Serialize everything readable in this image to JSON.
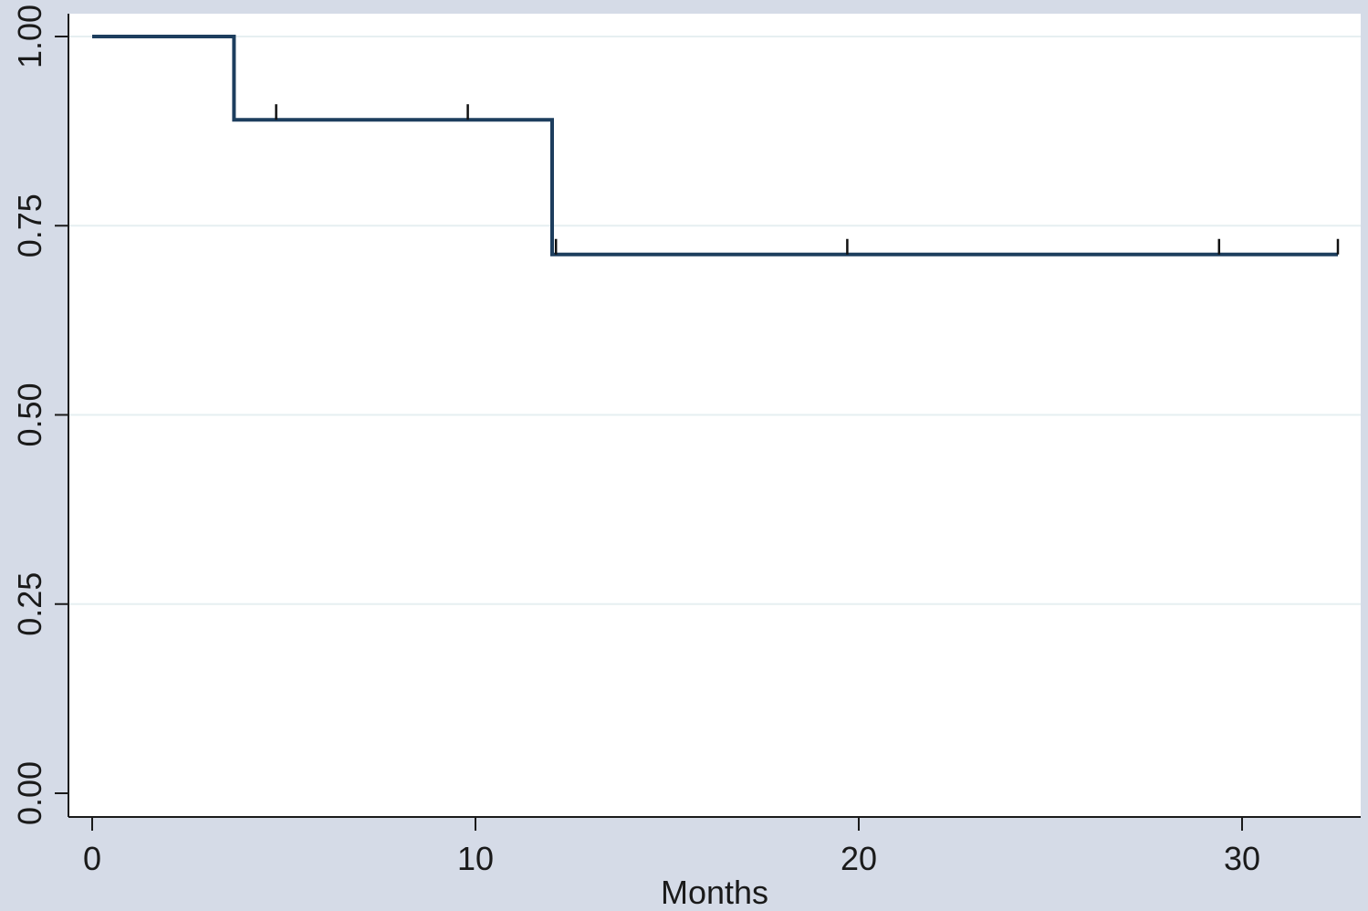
{
  "chart_data": {
    "type": "line",
    "step": true,
    "xlabel": "Months",
    "ylabel": "",
    "xlim": [
      0,
      32.5
    ],
    "ylim": [
      0,
      1
    ],
    "xticks": [
      0,
      10,
      20,
      30
    ],
    "xtick_labels": [
      "0",
      "10",
      "20",
      "30"
    ],
    "yticks": [
      0,
      0.25,
      0.5,
      0.75,
      1
    ],
    "ytick_labels": [
      "0.00",
      "0.25",
      "0.50",
      "0.75",
      "1.00"
    ],
    "grid": true,
    "series": [
      {
        "points": [
          [
            0,
            1.0
          ],
          [
            3.7,
            1.0
          ],
          [
            3.7,
            0.89
          ],
          [
            12.0,
            0.89
          ],
          [
            12.0,
            0.712
          ],
          [
            32.5,
            0.712
          ]
        ],
        "censor_times": [
          4.8,
          9.8,
          12.1,
          19.7,
          29.4,
          32.5
        ]
      }
    ],
    "colors": {
      "background": "#d5dbe7",
      "plot_area": "#ffffff",
      "line": "#1d3e5e",
      "gridline": "#e6eff1",
      "axis": "#1a1a1a"
    }
  }
}
